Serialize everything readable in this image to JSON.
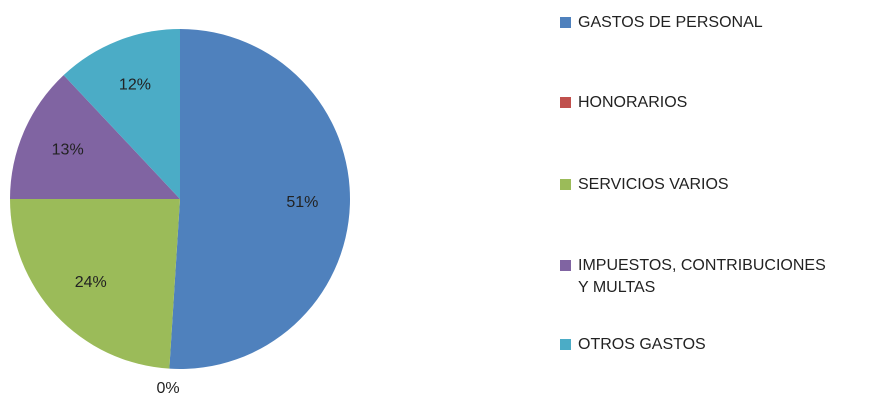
{
  "chart_data": {
    "type": "pie",
    "categories": [
      "GASTOS DE PERSONAL",
      "HONORARIOS",
      "SERVICIOS VARIOS",
      "IMPUESTOS, CONTRIBUCIONES Y MULTAS",
      "OTROS GASTOS"
    ],
    "values": [
      51,
      0,
      24,
      13,
      12
    ],
    "value_labels": [
      "51%",
      "0%",
      "24%",
      "13%",
      "12%"
    ],
    "colors": [
      "#4f81bd",
      "#c0504d",
      "#9bbb59",
      "#8064a2",
      "#4bacc6"
    ],
    "legend": "right"
  }
}
